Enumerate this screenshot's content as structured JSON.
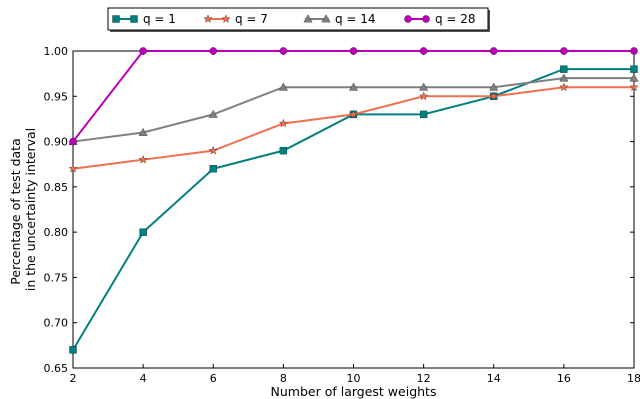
{
  "chart_data": {
    "type": "line",
    "x": [
      2,
      4,
      6,
      8,
      10,
      12,
      14,
      16,
      18
    ],
    "xlabel": "Number of largest weights",
    "ylabel": [
      "Percentage of test data",
      "in the uncertainty interval"
    ],
    "xlim": [
      2,
      18
    ],
    "ylim": [
      0.65,
      1.0
    ],
    "xticks": [
      "2",
      "4",
      "6",
      "8",
      "10",
      "12",
      "14",
      "16",
      "18"
    ],
    "yticks": [
      "0.65",
      "0.70",
      "0.75",
      "0.80",
      "0.85",
      "0.90",
      "0.95",
      "1.00"
    ],
    "grid": false,
    "legend_position": "top",
    "series": [
      {
        "name": "q = 1",
        "color": "#008080",
        "marker": "square",
        "values": [
          0.67,
          0.8,
          0.87,
          0.89,
          0.93,
          0.93,
          0.95,
          0.98,
          0.98
        ]
      },
      {
        "name": "q = 7",
        "color": "#f07050",
        "marker": "star",
        "values": [
          0.87,
          0.88,
          0.89,
          0.92,
          0.93,
          0.95,
          0.95,
          0.96,
          0.96
        ]
      },
      {
        "name": "q = 14",
        "color": "#808080",
        "marker": "triangle",
        "values": [
          0.9,
          0.91,
          0.93,
          0.96,
          0.96,
          0.96,
          0.96,
          0.97,
          0.97
        ]
      },
      {
        "name": "q = 28",
        "color": "#bb00bb",
        "marker": "circle",
        "values": [
          0.9,
          1.0,
          1.0,
          1.0,
          1.0,
          1.0,
          1.0,
          1.0,
          1.0
        ]
      }
    ]
  }
}
